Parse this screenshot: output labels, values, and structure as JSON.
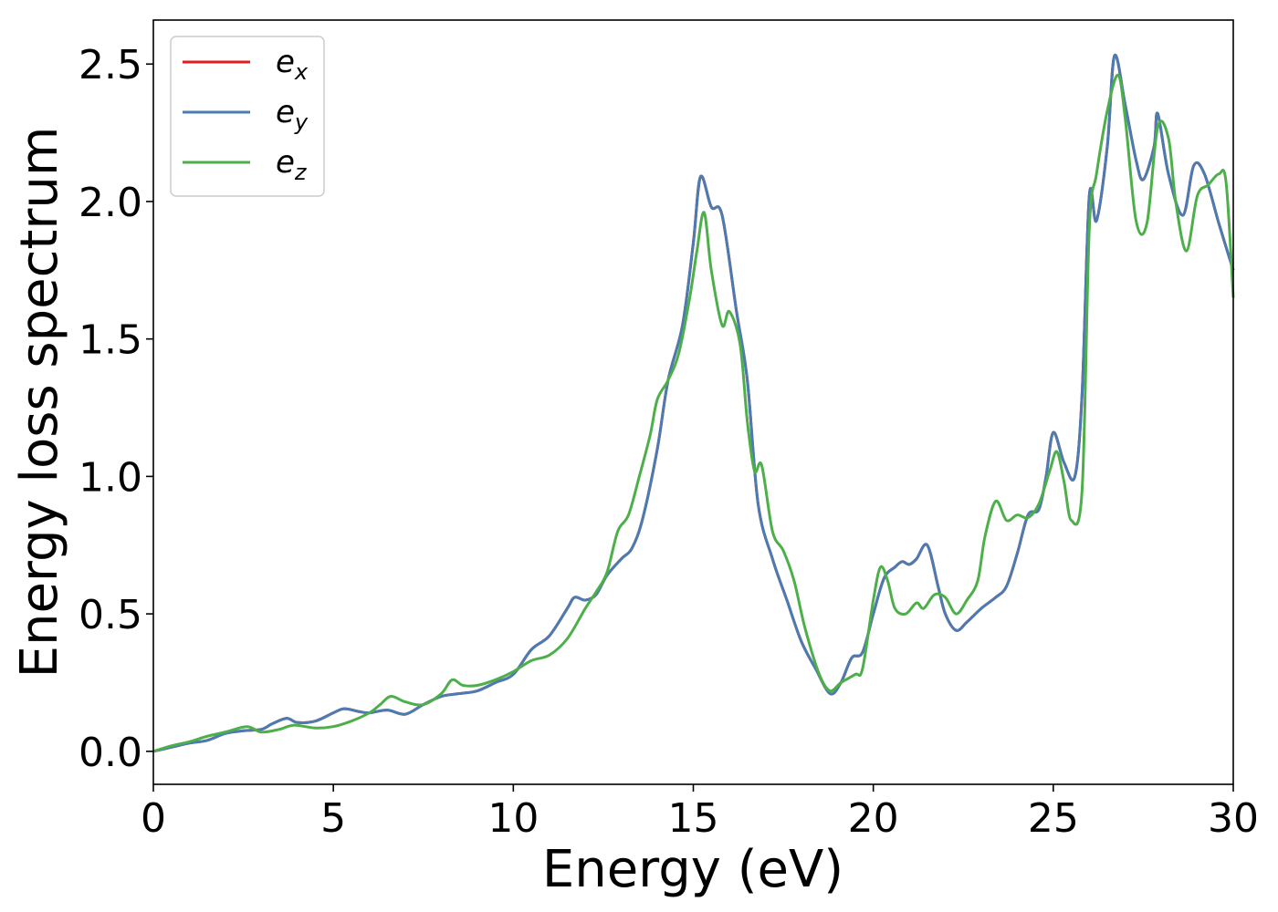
{
  "chart_data": {
    "type": "line",
    "xlabel": "Energy (eV)",
    "ylabel": "Energy loss spectrum",
    "xlim": [
      0,
      30
    ],
    "ylim": [
      -0.12,
      2.66
    ],
    "xticks": [
      0,
      5,
      10,
      15,
      20,
      25,
      30
    ],
    "yticks": [
      0.0,
      0.5,
      1.0,
      1.5,
      2.0,
      2.5
    ],
    "xtick_labels": [
      "0",
      "5",
      "10",
      "15",
      "20",
      "25",
      "30"
    ],
    "ytick_labels": [
      "0.0",
      "0.5",
      "1.0",
      "1.5",
      "2.0",
      "2.5"
    ],
    "grid": false,
    "legend_position": "top-left",
    "series": [
      {
        "name": "e",
        "subscript": "x",
        "color": "#e41a1c",
        "points": [
          [
            0,
            0.0
          ],
          [
            0.5,
            0.015
          ],
          [
            1.0,
            0.03
          ],
          [
            1.5,
            0.04
          ],
          [
            2.0,
            0.065
          ],
          [
            2.5,
            0.075
          ],
          [
            3.0,
            0.08
          ],
          [
            3.3,
            0.1
          ],
          [
            3.7,
            0.12
          ],
          [
            4.0,
            0.105
          ],
          [
            4.5,
            0.11
          ],
          [
            5.0,
            0.14
          ],
          [
            5.3,
            0.155
          ],
          [
            5.7,
            0.145
          ],
          [
            6.0,
            0.14
          ],
          [
            6.5,
            0.15
          ],
          [
            7.0,
            0.135
          ],
          [
            7.5,
            0.17
          ],
          [
            8.0,
            0.2
          ],
          [
            8.5,
            0.21
          ],
          [
            9.0,
            0.22
          ],
          [
            9.5,
            0.25
          ],
          [
            10.0,
            0.28
          ],
          [
            10.5,
            0.37
          ],
          [
            11.0,
            0.42
          ],
          [
            11.5,
            0.52
          ],
          [
            11.7,
            0.56
          ],
          [
            12.0,
            0.55
          ],
          [
            12.3,
            0.57
          ],
          [
            12.6,
            0.64
          ],
          [
            13.0,
            0.7
          ],
          [
            13.3,
            0.74
          ],
          [
            13.6,
            0.85
          ],
          [
            14.0,
            1.1
          ],
          [
            14.3,
            1.35
          ],
          [
            14.7,
            1.55
          ],
          [
            15.0,
            1.85
          ],
          [
            15.2,
            2.09
          ],
          [
            15.5,
            1.98
          ],
          [
            15.8,
            1.95
          ],
          [
            16.2,
            1.6
          ],
          [
            16.5,
            1.35
          ],
          [
            16.8,
            0.9
          ],
          [
            17.2,
            0.7
          ],
          [
            17.6,
            0.55
          ],
          [
            18.0,
            0.4
          ],
          [
            18.4,
            0.3
          ],
          [
            18.8,
            0.21
          ],
          [
            19.1,
            0.25
          ],
          [
            19.4,
            0.34
          ],
          [
            19.7,
            0.36
          ],
          [
            20.0,
            0.5
          ],
          [
            20.3,
            0.63
          ],
          [
            20.6,
            0.67
          ],
          [
            20.8,
            0.69
          ],
          [
            21.0,
            0.68
          ],
          [
            21.2,
            0.7
          ],
          [
            21.5,
            0.75
          ],
          [
            21.8,
            0.6
          ],
          [
            22.0,
            0.5
          ],
          [
            22.3,
            0.44
          ],
          [
            22.6,
            0.47
          ],
          [
            23.0,
            0.52
          ],
          [
            23.4,
            0.56
          ],
          [
            23.7,
            0.6
          ],
          [
            24.0,
            0.72
          ],
          [
            24.3,
            0.86
          ],
          [
            24.6,
            0.88
          ],
          [
            24.8,
            1.0
          ],
          [
            25.0,
            1.16
          ],
          [
            25.3,
            1.05
          ],
          [
            25.6,
            1.0
          ],
          [
            25.8,
            1.3
          ],
          [
            26.0,
            2.02
          ],
          [
            26.2,
            1.93
          ],
          [
            26.5,
            2.2
          ],
          [
            26.7,
            2.53
          ],
          [
            27.0,
            2.35
          ],
          [
            27.3,
            2.15
          ],
          [
            27.5,
            2.08
          ],
          [
            27.8,
            2.2
          ],
          [
            27.9,
            2.32
          ],
          [
            28.2,
            2.1
          ],
          [
            28.6,
            1.95
          ],
          [
            28.9,
            2.13
          ],
          [
            29.2,
            2.1
          ],
          [
            29.6,
            1.92
          ],
          [
            30.0,
            1.75
          ]
        ]
      },
      {
        "name": "e",
        "subscript": "y",
        "color": "#4a7bb2",
        "points": [
          [
            0,
            0.0
          ],
          [
            0.5,
            0.015
          ],
          [
            1.0,
            0.03
          ],
          [
            1.5,
            0.04
          ],
          [
            2.0,
            0.065
          ],
          [
            2.5,
            0.075
          ],
          [
            3.0,
            0.08
          ],
          [
            3.3,
            0.1
          ],
          [
            3.7,
            0.12
          ],
          [
            4.0,
            0.105
          ],
          [
            4.5,
            0.11
          ],
          [
            5.0,
            0.14
          ],
          [
            5.3,
            0.155
          ],
          [
            5.7,
            0.145
          ],
          [
            6.0,
            0.14
          ],
          [
            6.5,
            0.15
          ],
          [
            7.0,
            0.135
          ],
          [
            7.5,
            0.17
          ],
          [
            8.0,
            0.2
          ],
          [
            8.5,
            0.21
          ],
          [
            9.0,
            0.22
          ],
          [
            9.5,
            0.25
          ],
          [
            10.0,
            0.28
          ],
          [
            10.5,
            0.37
          ],
          [
            11.0,
            0.42
          ],
          [
            11.5,
            0.52
          ],
          [
            11.7,
            0.56
          ],
          [
            12.0,
            0.55
          ],
          [
            12.3,
            0.57
          ],
          [
            12.6,
            0.64
          ],
          [
            13.0,
            0.7
          ],
          [
            13.3,
            0.74
          ],
          [
            13.6,
            0.85
          ],
          [
            14.0,
            1.1
          ],
          [
            14.3,
            1.35
          ],
          [
            14.7,
            1.55
          ],
          [
            15.0,
            1.85
          ],
          [
            15.2,
            2.09
          ],
          [
            15.5,
            1.98
          ],
          [
            15.8,
            1.95
          ],
          [
            16.2,
            1.6
          ],
          [
            16.5,
            1.35
          ],
          [
            16.8,
            0.9
          ],
          [
            17.2,
            0.7
          ],
          [
            17.6,
            0.55
          ],
          [
            18.0,
            0.4
          ],
          [
            18.4,
            0.3
          ],
          [
            18.8,
            0.21
          ],
          [
            19.1,
            0.25
          ],
          [
            19.4,
            0.34
          ],
          [
            19.7,
            0.36
          ],
          [
            20.0,
            0.5
          ],
          [
            20.3,
            0.63
          ],
          [
            20.6,
            0.67
          ],
          [
            20.8,
            0.69
          ],
          [
            21.0,
            0.68
          ],
          [
            21.2,
            0.7
          ],
          [
            21.5,
            0.75
          ],
          [
            21.8,
            0.6
          ],
          [
            22.0,
            0.5
          ],
          [
            22.3,
            0.44
          ],
          [
            22.6,
            0.47
          ],
          [
            23.0,
            0.52
          ],
          [
            23.4,
            0.56
          ],
          [
            23.7,
            0.6
          ],
          [
            24.0,
            0.72
          ],
          [
            24.3,
            0.86
          ],
          [
            24.6,
            0.88
          ],
          [
            24.8,
            1.0
          ],
          [
            25.0,
            1.16
          ],
          [
            25.3,
            1.05
          ],
          [
            25.6,
            1.0
          ],
          [
            25.8,
            1.3
          ],
          [
            26.0,
            2.02
          ],
          [
            26.2,
            1.93
          ],
          [
            26.5,
            2.2
          ],
          [
            26.7,
            2.53
          ],
          [
            27.0,
            2.35
          ],
          [
            27.3,
            2.15
          ],
          [
            27.5,
            2.08
          ],
          [
            27.8,
            2.2
          ],
          [
            27.9,
            2.32
          ],
          [
            28.2,
            2.1
          ],
          [
            28.6,
            1.95
          ],
          [
            28.9,
            2.13
          ],
          [
            29.2,
            2.1
          ],
          [
            29.6,
            1.92
          ],
          [
            30.0,
            1.75
          ]
        ]
      },
      {
        "name": "e",
        "subscript": "z",
        "color": "#4daf4a",
        "points": [
          [
            0,
            0.0
          ],
          [
            0.5,
            0.02
          ],
          [
            1.0,
            0.035
          ],
          [
            1.5,
            0.055
          ],
          [
            2.0,
            0.07
          ],
          [
            2.6,
            0.09
          ],
          [
            3.0,
            0.07
          ],
          [
            3.5,
            0.08
          ],
          [
            3.9,
            0.095
          ],
          [
            4.5,
            0.085
          ],
          [
            5.0,
            0.09
          ],
          [
            5.5,
            0.11
          ],
          [
            6.0,
            0.14
          ],
          [
            6.3,
            0.17
          ],
          [
            6.6,
            0.2
          ],
          [
            7.0,
            0.18
          ],
          [
            7.5,
            0.17
          ],
          [
            8.0,
            0.21
          ],
          [
            8.3,
            0.26
          ],
          [
            8.6,
            0.24
          ],
          [
            9.0,
            0.24
          ],
          [
            9.5,
            0.26
          ],
          [
            10.0,
            0.29
          ],
          [
            10.5,
            0.33
          ],
          [
            11.0,
            0.35
          ],
          [
            11.5,
            0.41
          ],
          [
            12.0,
            0.52
          ],
          [
            12.3,
            0.58
          ],
          [
            12.6,
            0.65
          ],
          [
            12.9,
            0.8
          ],
          [
            13.2,
            0.86
          ],
          [
            13.5,
            1.0
          ],
          [
            13.8,
            1.15
          ],
          [
            14.0,
            1.28
          ],
          [
            14.3,
            1.35
          ],
          [
            14.6,
            1.45
          ],
          [
            14.9,
            1.65
          ],
          [
            15.1,
            1.82
          ],
          [
            15.3,
            1.96
          ],
          [
            15.5,
            1.75
          ],
          [
            15.8,
            1.55
          ],
          [
            16.0,
            1.6
          ],
          [
            16.3,
            1.48
          ],
          [
            16.5,
            1.2
          ],
          [
            16.7,
            1.02
          ],
          [
            16.9,
            1.04
          ],
          [
            17.2,
            0.8
          ],
          [
            17.5,
            0.73
          ],
          [
            17.8,
            0.62
          ],
          [
            18.1,
            0.45
          ],
          [
            18.5,
            0.28
          ],
          [
            18.8,
            0.22
          ],
          [
            19.1,
            0.25
          ],
          [
            19.5,
            0.28
          ],
          [
            19.7,
            0.3
          ],
          [
            20.0,
            0.55
          ],
          [
            20.2,
            0.67
          ],
          [
            20.4,
            0.62
          ],
          [
            20.6,
            0.52
          ],
          [
            20.9,
            0.5
          ],
          [
            21.2,
            0.54
          ],
          [
            21.4,
            0.52
          ],
          [
            21.7,
            0.57
          ],
          [
            22.0,
            0.56
          ],
          [
            22.3,
            0.5
          ],
          [
            22.6,
            0.55
          ],
          [
            22.9,
            0.62
          ],
          [
            23.1,
            0.78
          ],
          [
            23.4,
            0.91
          ],
          [
            23.7,
            0.84
          ],
          [
            24.0,
            0.86
          ],
          [
            24.3,
            0.85
          ],
          [
            24.6,
            0.9
          ],
          [
            24.9,
            1.02
          ],
          [
            25.1,
            1.09
          ],
          [
            25.3,
            0.98
          ],
          [
            25.5,
            0.84
          ],
          [
            25.8,
            0.95
          ],
          [
            26.0,
            1.9
          ],
          [
            26.2,
            2.1
          ],
          [
            26.5,
            2.33
          ],
          [
            26.8,
            2.46
          ],
          [
            27.0,
            2.3
          ],
          [
            27.3,
            1.93
          ],
          [
            27.6,
            1.92
          ],
          [
            27.9,
            2.27
          ],
          [
            28.2,
            2.23
          ],
          [
            28.4,
            2.0
          ],
          [
            28.7,
            1.82
          ],
          [
            29.0,
            2.02
          ],
          [
            29.3,
            2.06
          ],
          [
            29.6,
            2.1
          ],
          [
            29.8,
            2.07
          ],
          [
            30.0,
            1.65
          ]
        ]
      }
    ]
  }
}
